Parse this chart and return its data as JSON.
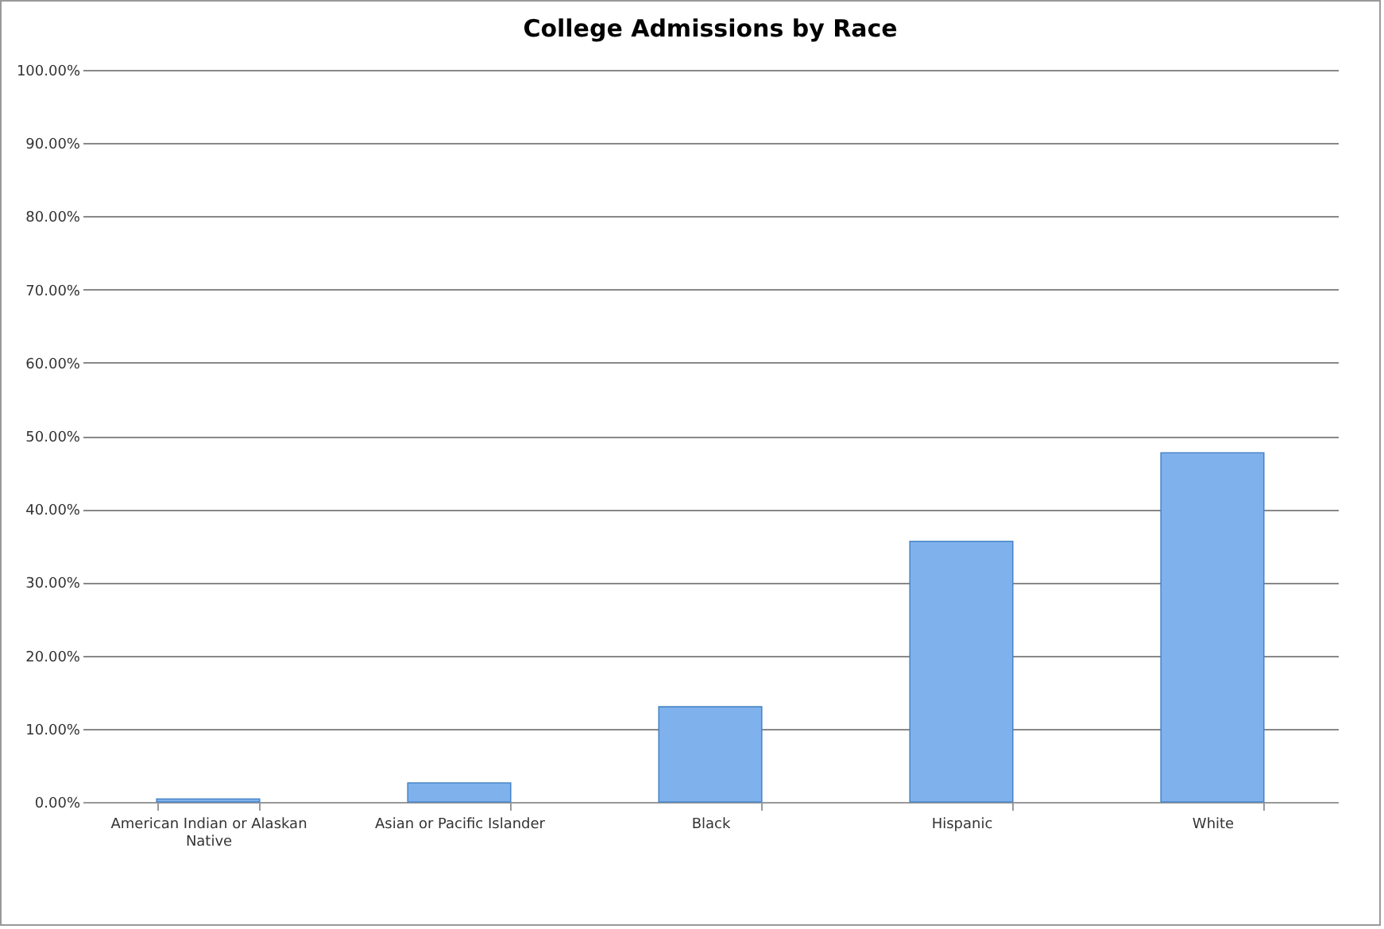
{
  "chart_data": {
    "type": "bar",
    "title": "College Admissions by Race",
    "categories": [
      "American Indian or Alaskan Native",
      "Asian or  Pacific Islander",
      "Black",
      "Hispanic",
      "White"
    ],
    "values": [
      0.4,
      2.6,
      13.0,
      35.6,
      47.7
    ],
    "color": "#7fb2ec",
    "ylim": [
      0,
      100
    ],
    "yticks": [
      {
        "value": 0,
        "label": "0.00%"
      },
      {
        "value": 10,
        "label": "10.00%"
      },
      {
        "value": 20,
        "label": "20.00%"
      },
      {
        "value": 30,
        "label": "30.00%"
      },
      {
        "value": 40,
        "label": "40.00%"
      },
      {
        "value": 50,
        "label": "50.00%"
      },
      {
        "value": 60,
        "label": "60.00%"
      },
      {
        "value": 70,
        "label": "70.00%"
      },
      {
        "value": 80,
        "label": "80.00%"
      },
      {
        "value": 90,
        "label": "90.00%"
      },
      {
        "value": 100,
        "label": "100.00%"
      }
    ],
    "grid": "y"
  }
}
